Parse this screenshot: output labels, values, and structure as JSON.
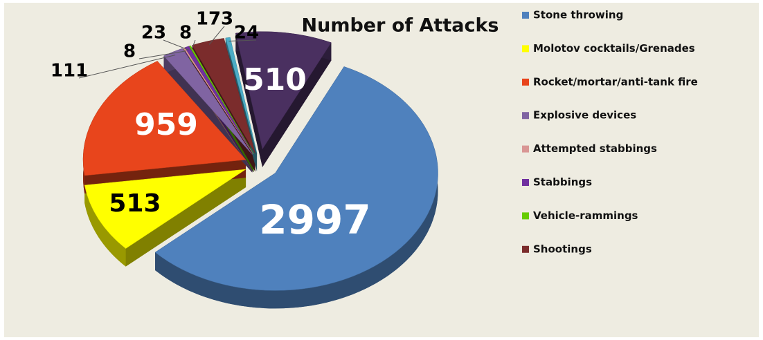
{
  "chart_data": {
    "type": "pie",
    "title": "Number of Attacks",
    "categories": [
      "Stone throwing",
      "Molotov cocktails/Grenades",
      "Rocket/mortar/anti-tank fire",
      "Explosive devices",
      "Attempted stabbings",
      "Stabbings",
      "Vehicle-rammings",
      "Shootings",
      null,
      null
    ],
    "values": [
      2997,
      513,
      959,
      111,
      8,
      23,
      8,
      173,
      24,
      510
    ],
    "colors": [
      "#4f81bd",
      "#ffff00",
      "#e8451c",
      "#8064a2",
      "#d99694",
      "#7030a0",
      "#66cc00",
      "#7b2c2c",
      "#4bacc6",
      "#4a3060"
    ],
    "legend": "right"
  }
}
